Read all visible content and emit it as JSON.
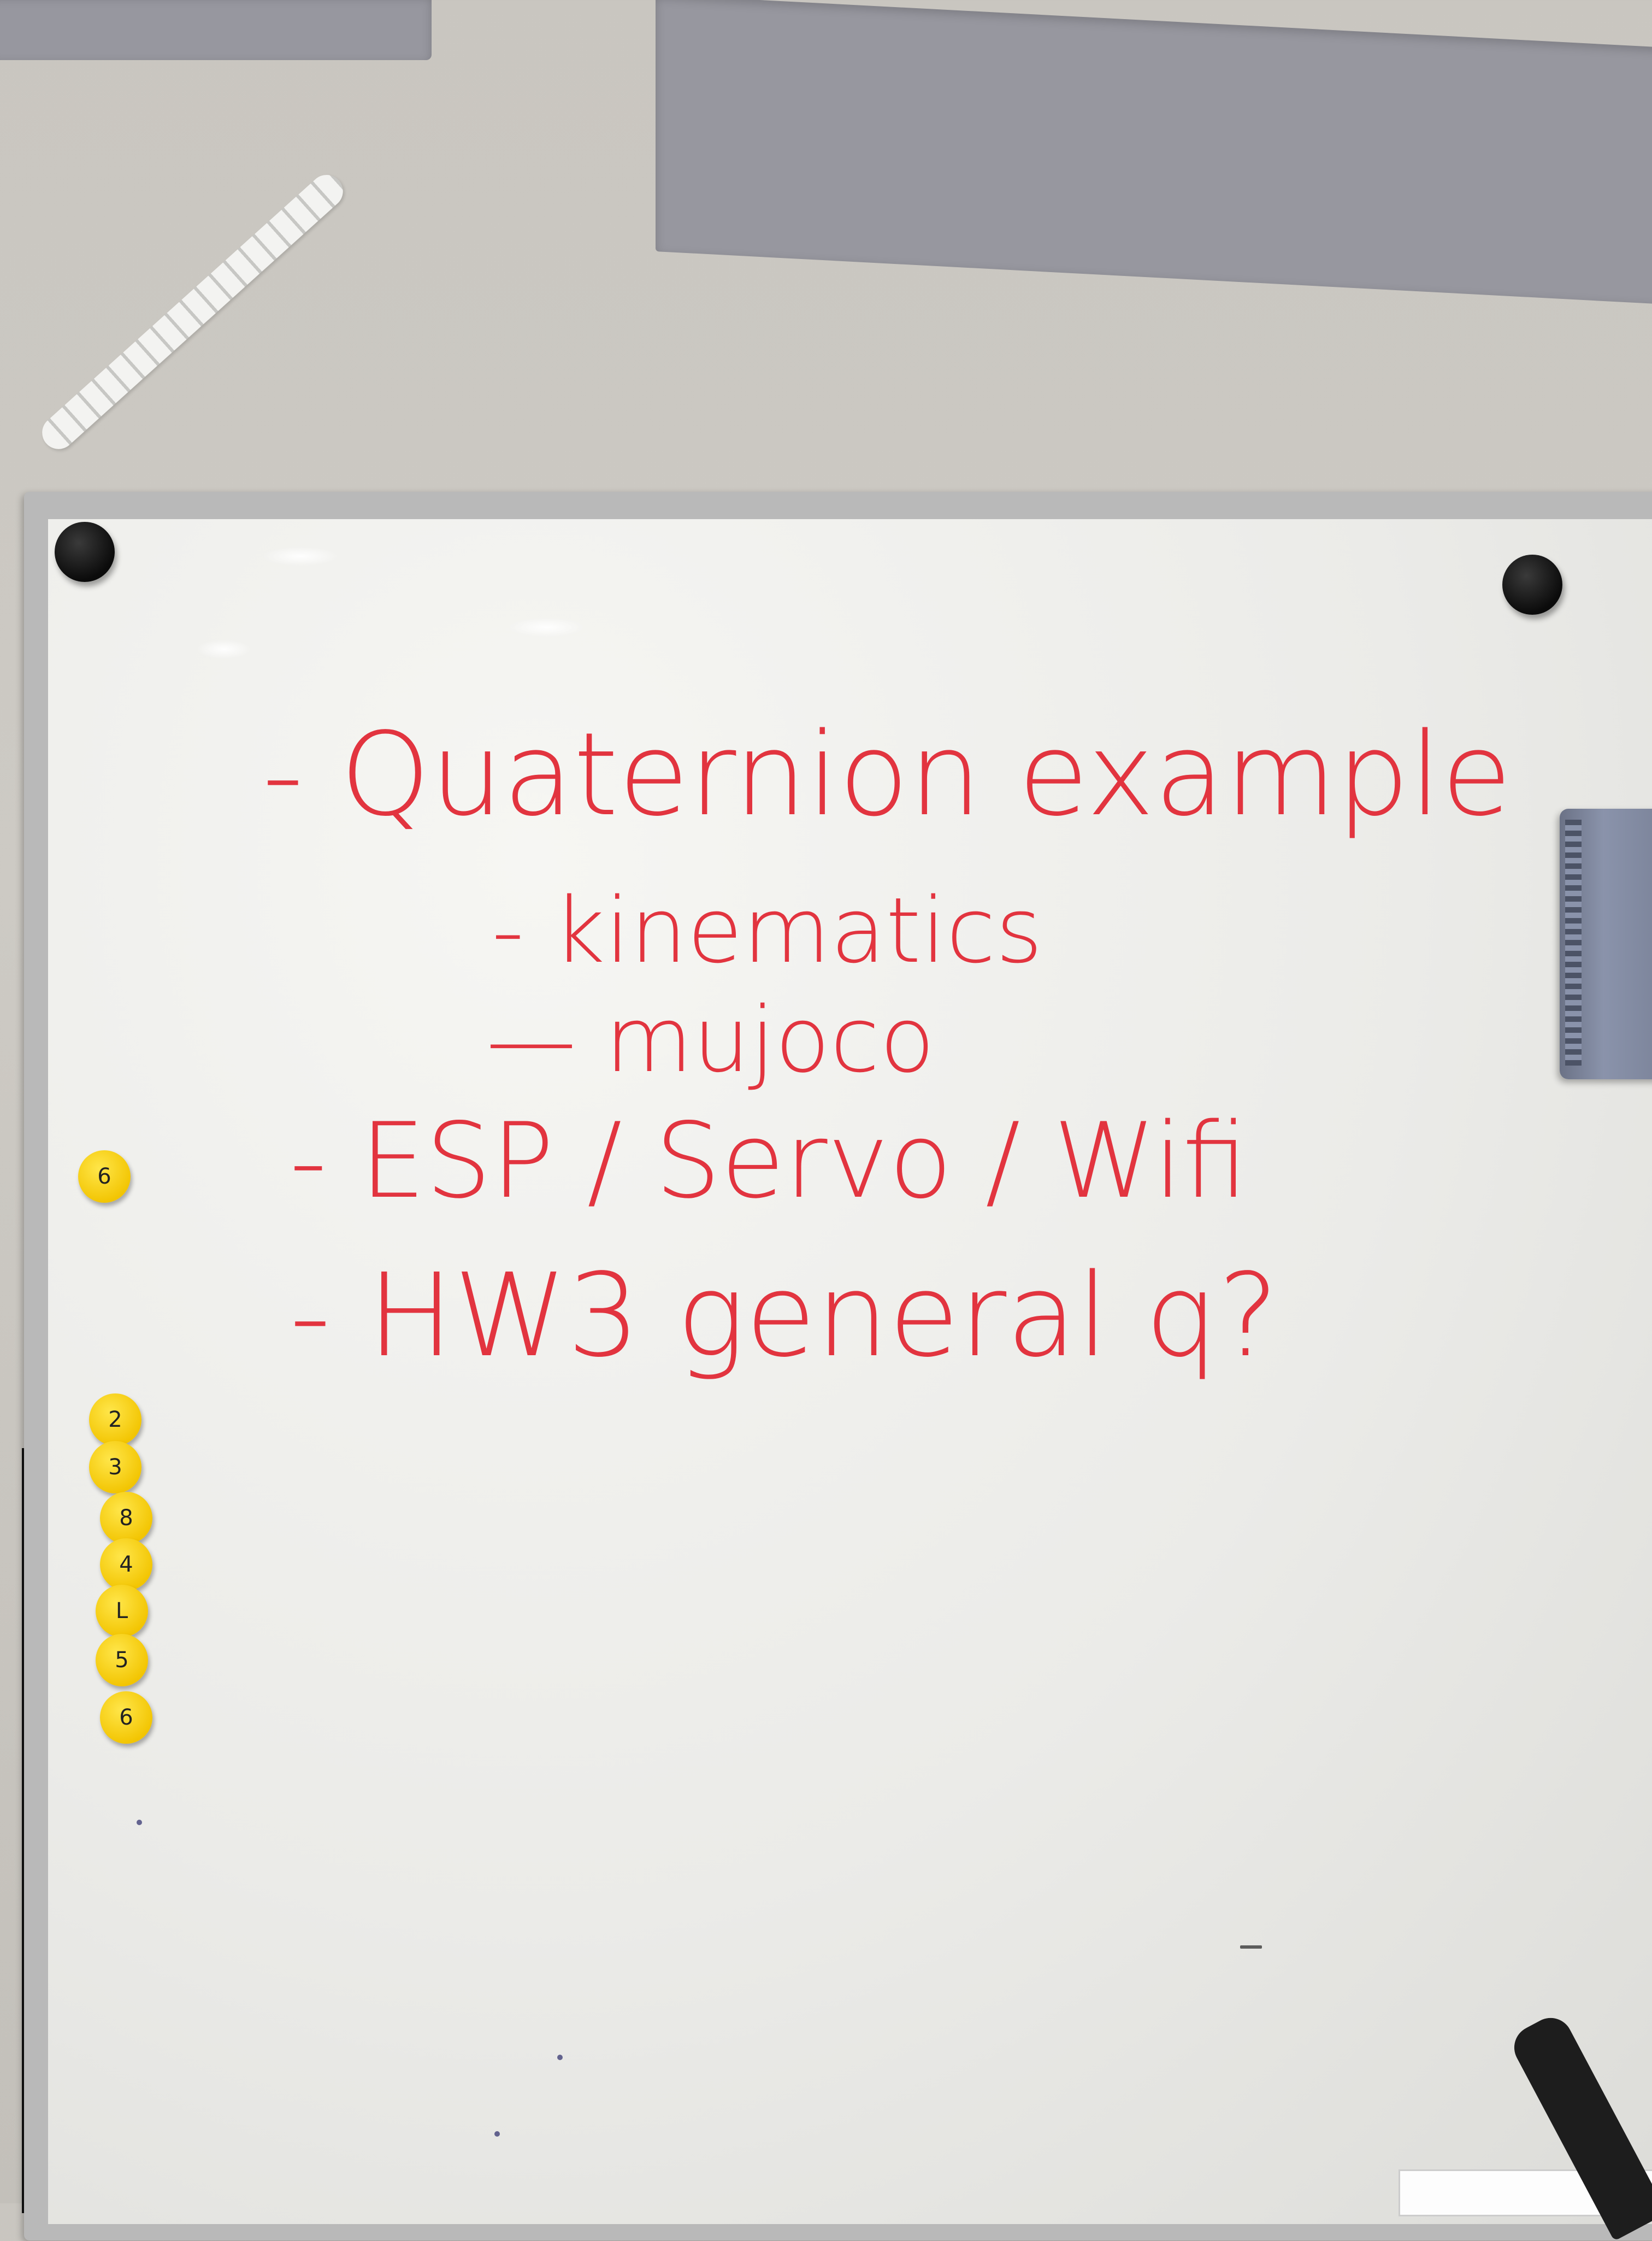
{
  "whiteboard": {
    "lines": [
      "- Quaternion example",
      "- kinematics",
      "— mujoco",
      "- ESP / Servo / Wifi",
      "- HW3 general q?"
    ],
    "ink_color": "#e2343f"
  },
  "magnets": {
    "queue_labels": [
      "6",
      "2",
      "3",
      "8",
      "4",
      "L",
      "5",
      "6"
    ]
  }
}
